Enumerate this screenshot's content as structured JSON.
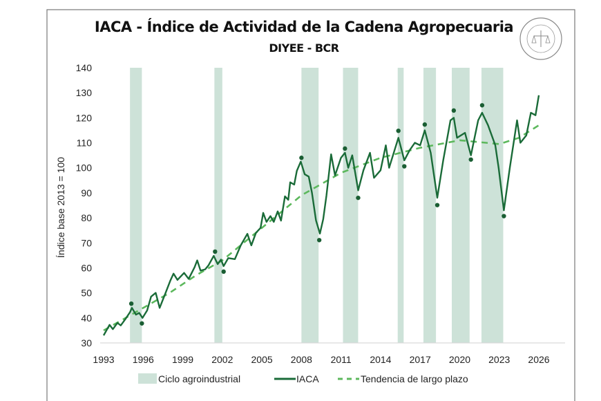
{
  "chart_data": {
    "type": "line",
    "title": "IACA - Índice de Actividad de la Cadena Agropecuaria",
    "subtitle": "DIYEE - BCR",
    "xlabel": "",
    "ylabel": "Índice base 2013 = 100",
    "xlim": [
      1993,
      2026
    ],
    "ylim": [
      30,
      140
    ],
    "x_ticks": [
      "1993",
      "1996",
      "1999",
      "2002",
      "2005",
      "2008",
      "2011",
      "2014",
      "2017",
      "2020",
      "2023",
      "2026"
    ],
    "y_ticks": [
      "30",
      "40",
      "50",
      "60",
      "70",
      "80",
      "90",
      "100",
      "110",
      "120",
      "130",
      "140"
    ],
    "grid": false,
    "legend_position": "bottom",
    "legend": [
      "Ciclo agroindustrial",
      "IACA",
      "Tendencia de largo plazo"
    ],
    "colors": {
      "band": "#cde2d8",
      "iaca": "#1a6b38",
      "trend": "#5cb85c",
      "markers": "#1a5e33"
    },
    "bands": [
      {
        "name": "Ciclo agroindustrial",
        "from": 1995.0,
        "to": 1995.9
      },
      {
        "name": "Ciclo agroindustrial",
        "from": 2001.4,
        "to": 2002.0
      },
      {
        "name": "Ciclo agroindustrial",
        "from": 2008.0,
        "to": 2009.3
      },
      {
        "name": "Ciclo agroindustrial",
        "from": 2011.15,
        "to": 2012.3
      },
      {
        "name": "Ciclo agroindustrial",
        "from": 2015.3,
        "to": 2015.75
      },
      {
        "name": "Ciclo agroindustrial",
        "from": 2017.25,
        "to": 2018.2
      },
      {
        "name": "Ciclo agroindustrial",
        "from": 2019.4,
        "to": 2020.75
      },
      {
        "name": "Ciclo agroindustrial",
        "from": 2021.65,
        "to": 2023.3
      }
    ],
    "series": [
      {
        "name": "IACA",
        "style": "solid",
        "points": [
          [
            1993.0,
            33
          ],
          [
            1993.45,
            37.2
          ],
          [
            1993.7,
            35.5
          ],
          [
            1994.05,
            38
          ],
          [
            1994.3,
            37
          ],
          [
            1994.65,
            39.5
          ],
          [
            1995.0,
            42.3
          ],
          [
            1995.15,
            44
          ],
          [
            1995.45,
            41.3
          ],
          [
            1995.7,
            42
          ],
          [
            1995.95,
            40
          ],
          [
            1996.3,
            43
          ],
          [
            1996.6,
            48.5
          ],
          [
            1996.95,
            50
          ],
          [
            1997.25,
            44
          ],
          [
            1997.7,
            50
          ],
          [
            1998.05,
            54.8
          ],
          [
            1998.3,
            57.7
          ],
          [
            1998.6,
            55.2
          ],
          [
            1999.1,
            58
          ],
          [
            1999.45,
            55.6
          ],
          [
            1999.9,
            60.3
          ],
          [
            2000.1,
            63
          ],
          [
            2000.35,
            58.9
          ],
          [
            2000.7,
            59.4
          ],
          [
            2000.95,
            61
          ],
          [
            2001.35,
            64.8
          ],
          [
            2001.65,
            61.5
          ],
          [
            2001.9,
            63.3
          ],
          [
            2002.1,
            60.7
          ],
          [
            2002.45,
            63.9
          ],
          [
            2002.95,
            63.5
          ],
          [
            2003.4,
            69
          ],
          [
            2003.9,
            73.6
          ],
          [
            2004.2,
            69
          ],
          [
            2004.55,
            74
          ],
          [
            2004.9,
            76
          ],
          [
            2005.1,
            82
          ],
          [
            2005.35,
            78.4
          ],
          [
            2005.65,
            80.7
          ],
          [
            2005.9,
            78.4
          ],
          [
            2006.2,
            82.6
          ],
          [
            2006.45,
            78.9
          ],
          [
            2006.75,
            88.6
          ],
          [
            2007.0,
            87.2
          ],
          [
            2007.15,
            94.2
          ],
          [
            2007.45,
            93.3
          ],
          [
            2007.65,
            98.8
          ],
          [
            2007.95,
            102.5
          ],
          [
            2008.25,
            97.4
          ],
          [
            2008.55,
            96.5
          ],
          [
            2008.8,
            90
          ],
          [
            2009.1,
            79
          ],
          [
            2009.4,
            73.7
          ],
          [
            2009.65,
            79.5
          ],
          [
            2009.9,
            89
          ],
          [
            2010.25,
            105.4
          ],
          [
            2010.55,
            97
          ],
          [
            2011.0,
            104
          ],
          [
            2011.3,
            106
          ],
          [
            2011.55,
            100
          ],
          [
            2011.85,
            105
          ],
          [
            2012.3,
            91
          ],
          [
            2012.7,
            99
          ],
          [
            2013.2,
            106
          ],
          [
            2013.5,
            96
          ],
          [
            2014.0,
            99
          ],
          [
            2014.4,
            109
          ],
          [
            2014.65,
            100
          ],
          [
            2015.35,
            112
          ],
          [
            2015.8,
            103
          ],
          [
            2016.2,
            107
          ],
          [
            2016.6,
            110
          ],
          [
            2017.0,
            109
          ],
          [
            2017.35,
            115
          ],
          [
            2017.8,
            106
          ],
          [
            2018.3,
            88
          ],
          [
            2018.75,
            103
          ],
          [
            2019.3,
            119
          ],
          [
            2019.55,
            120
          ],
          [
            2019.8,
            112
          ],
          [
            2020.4,
            114
          ],
          [
            2020.85,
            105
          ],
          [
            2021.4,
            119
          ],
          [
            2021.7,
            122
          ],
          [
            2022.15,
            117
          ],
          [
            2022.7,
            109
          ],
          [
            2022.95,
            100
          ],
          [
            2023.35,
            83
          ],
          [
            2023.8,
            100
          ],
          [
            2024.35,
            119
          ],
          [
            2024.6,
            110
          ],
          [
            2025.05,
            113
          ],
          [
            2025.4,
            122
          ],
          [
            2025.75,
            121
          ],
          [
            2026.0,
            129
          ]
        ]
      },
      {
        "name": "Tendencia de largo plazo",
        "style": "dashed",
        "points": [
          [
            1993,
            35
          ],
          [
            1995,
            41
          ],
          [
            1998,
            50
          ],
          [
            2000,
            57
          ],
          [
            2002,
            63
          ],
          [
            2005,
            76
          ],
          [
            2008,
            89
          ],
          [
            2011,
            98
          ],
          [
            2014,
            104
          ],
          [
            2017,
            108
          ],
          [
            2020,
            111
          ],
          [
            2022,
            110
          ],
          [
            2023,
            109.5
          ],
          [
            2024.5,
            112
          ],
          [
            2026,
            117
          ]
        ]
      }
    ],
    "turning_points": [
      [
        1995.1,
        45.7
      ],
      [
        1995.9,
        37.8
      ],
      [
        2001.45,
        66.5
      ],
      [
        2002.1,
        58.5
      ],
      [
        2008.0,
        104
      ],
      [
        2009.35,
        71.1
      ],
      [
        2011.3,
        107.7
      ],
      [
        2012.3,
        88
      ],
      [
        2015.35,
        114.8
      ],
      [
        2015.8,
        100.6
      ],
      [
        2017.35,
        117.3
      ],
      [
        2018.3,
        85.1
      ],
      [
        2019.55,
        122.9
      ],
      [
        2020.85,
        103.3
      ],
      [
        2021.7,
        125
      ],
      [
        2023.35,
        80.7
      ]
    ]
  },
  "logo": {
    "text": "BOLSA DE COMERCIO DE ROSARIO"
  }
}
